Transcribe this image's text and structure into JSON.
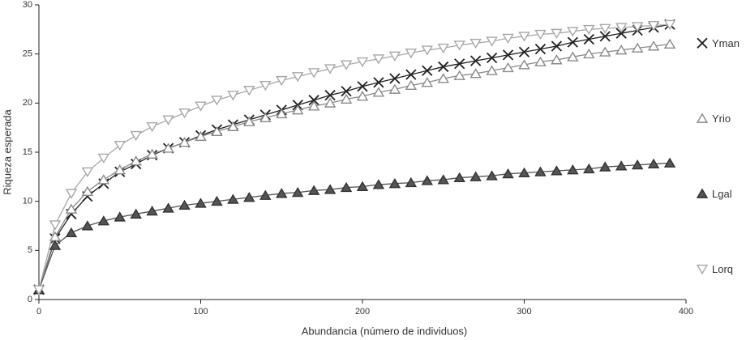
{
  "chart_data": {
    "type": "line",
    "x_label": "Abundancia (número de individuos)",
    "y_label": "Riqueza esperada",
    "x": [
      0,
      10,
      20,
      30,
      40,
      50,
      60,
      70,
      80,
      90,
      100,
      110,
      120,
      130,
      140,
      150,
      160,
      170,
      180,
      190,
      200,
      210,
      220,
      230,
      240,
      250,
      260,
      270,
      280,
      290,
      300,
      310,
      320,
      330,
      340,
      350,
      360,
      370,
      380,
      390
    ],
    "series": [
      {
        "name": "Yman",
        "color": "#222222",
        "marker": "x",
        "values": [
          1,
          6.2,
          8.7,
          10.5,
          11.8,
          13.0,
          13.8,
          14.7,
          15.4,
          16.0,
          16.7,
          17.3,
          17.8,
          18.3,
          18.8,
          19.3,
          19.8,
          20.3,
          20.8,
          21.2,
          21.7,
          22.1,
          22.5,
          22.9,
          23.3,
          23.7,
          24.0,
          24.3,
          24.6,
          24.9,
          25.2,
          25.5,
          25.8,
          26.2,
          26.5,
          26.8,
          27.1,
          27.4,
          27.7,
          28.0
        ]
      },
      {
        "name": "Yrio",
        "color": "#8a8a8a",
        "marker": "triangle-up",
        "values": [
          1,
          6.4,
          9.2,
          11.0,
          12.2,
          13.2,
          14.1,
          14.8,
          15.4,
          16.0,
          16.6,
          17.1,
          17.6,
          18.1,
          18.5,
          18.9,
          19.3,
          19.7,
          20.0,
          20.4,
          20.7,
          21.1,
          21.4,
          21.8,
          22.1,
          22.5,
          22.8,
          23.0,
          23.3,
          23.6,
          23.9,
          24.2,
          24.4,
          24.7,
          25.0,
          25.2,
          25.4,
          25.6,
          25.8,
          26.0
        ]
      },
      {
        "name": "Lgal",
        "color": "#555555",
        "marker": "triangle-up-filled",
        "values": [
          1,
          5.5,
          6.8,
          7.5,
          8.0,
          8.4,
          8.7,
          9.0,
          9.3,
          9.6,
          9.8,
          10.0,
          10.2,
          10.4,
          10.6,
          10.8,
          10.9,
          11.1,
          11.2,
          11.4,
          11.5,
          11.7,
          11.8,
          11.9,
          12.1,
          12.2,
          12.4,
          12.5,
          12.6,
          12.8,
          12.9,
          13.0,
          13.1,
          13.2,
          13.3,
          13.5,
          13.6,
          13.7,
          13.8,
          13.9
        ]
      },
      {
        "name": "Lorq",
        "color": "#a8a8a8",
        "marker": "triangle-down",
        "values": [
          1,
          7.6,
          10.8,
          13.0,
          14.4,
          15.7,
          16.7,
          17.6,
          18.3,
          19.0,
          19.7,
          20.3,
          20.8,
          21.3,
          21.8,
          22.3,
          22.7,
          23.1,
          23.5,
          23.9,
          24.2,
          24.5,
          24.8,
          25.1,
          25.4,
          25.6,
          25.9,
          26.1,
          26.3,
          26.6,
          26.8,
          27.0,
          27.1,
          27.3,
          27.5,
          27.6,
          27.7,
          27.8,
          27.9,
          28.0
        ]
      }
    ],
    "xlim": [
      0,
      400
    ],
    "xticks": [
      0,
      100,
      200,
      300,
      400
    ],
    "ylim": [
      0,
      30
    ],
    "yticks": [
      0,
      5,
      10,
      15,
      20,
      25,
      30
    ],
    "grid": false,
    "legend": "right"
  }
}
